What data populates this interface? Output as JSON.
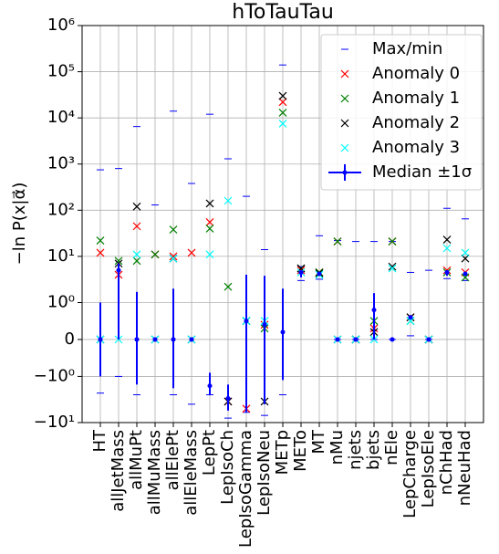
{
  "chart_data": {
    "type": "scatter",
    "title": "hToTauTau",
    "y_label": "−ln P(x|α⃗)",
    "yscale": "symlog",
    "linthresh": 1,
    "grid": true,
    "legend": "upper right",
    "categories": [
      "HT",
      "allJetMass",
      "allMuPt",
      "allMuMass",
      "allElePt",
      "allEleMass",
      "LepPt",
      "LepIsoCh",
      "LepIsoGamma",
      "LepIsoNeu",
      "METp",
      "METo",
      "MT",
      "nMu",
      "njets",
      "bjets",
      "nEle",
      "LepCharge",
      "LepIsoEle",
      "nChHad",
      "nNeuHad"
    ],
    "ylim": [
      -10,
      1000000
    ],
    "yticks": [
      {
        "value": -10,
        "label": "−10¹"
      },
      {
        "value": -1,
        "label": "−10⁰"
      },
      0,
      {
        "value": 1,
        "label": "10⁰"
      },
      {
        "value": 10,
        "label": "10¹"
      },
      {
        "value": 100,
        "label": "10²"
      },
      {
        "value": 1000,
        "label": "10³"
      },
      {
        "value": 10000,
        "label": "10⁴"
      },
      {
        "value": 100000,
        "label": "10⁵"
      },
      {
        "value": 1000000,
        "label": "10⁶"
      }
    ],
    "series": [
      {
        "name": "Max/min",
        "color": "#0000ff",
        "max": [
          750,
          800,
          6500,
          130,
          14000,
          380,
          12000,
          1300,
          200,
          14,
          140000,
          6,
          28,
          22,
          21,
          21,
          21,
          4.5,
          5,
          110,
          65
        ],
        "min": [
          -2.3,
          -1,
          -2.5,
          null,
          -2.5,
          -4,
          -2.5,
          -8,
          -6,
          -7,
          -2.5,
          3,
          3.2,
          0,
          0,
          0,
          0,
          0.1,
          0,
          3.3,
          3
        ]
      },
      {
        "name": "Anomaly 0",
        "color": "#ff0000",
        "values": [
          12,
          4,
          45,
          11,
          10,
          12,
          55,
          -3.5,
          -5,
          0.4,
          22000,
          5,
          4.5,
          21,
          0,
          0.3,
          21,
          0.6,
          0,
          5,
          4.5
        ]
      },
      {
        "name": "Anomaly 1",
        "color": "#008000",
        "values": [
          22,
          8,
          8,
          11,
          38,
          null,
          40,
          2.2,
          0.5,
          0.3,
          13000,
          5.5,
          4.5,
          21,
          0,
          0.5,
          21,
          0.5,
          0,
          4.5,
          3.5
        ]
      },
      {
        "name": "Anomaly 2",
        "color": "#000000",
        "values": [
          0,
          7,
          120,
          0,
          9,
          0,
          140,
          -3.5,
          0.5,
          -3.5,
          30000,
          5.5,
          4.3,
          0,
          0,
          0.2,
          6,
          0.6,
          0,
          23,
          9
        ]
      },
      {
        "name": "Anomaly 3",
        "color": "#00ffff",
        "values": [
          0,
          0,
          11,
          0,
          9,
          0,
          11,
          160,
          0.5,
          0.5,
          7500,
          4.5,
          4,
          0,
          0,
          0,
          5.5,
          0.5,
          0,
          15,
          12
        ]
      },
      {
        "name": "Median ±1σ",
        "color": "#0000ff",
        "values": [
          0,
          5,
          0,
          0,
          0,
          0,
          -1.6,
          -3,
          0.5,
          0.4,
          0.2,
          4.5,
          4.2,
          0,
          0,
          0.8,
          0,
          0.6,
          0,
          4.5,
          4.2
        ],
        "lower": [
          -1,
          0,
          -1.5,
          null,
          -1.8,
          null,
          -2.5,
          -5.5,
          -6,
          -4,
          -1.2,
          3.5,
          null,
          null,
          null,
          0,
          null,
          null,
          null,
          3.8,
          null
        ],
        "upper": [
          1,
          7,
          1.7,
          null,
          2,
          null,
          -0.9,
          -1.5,
          4,
          3.8,
          2,
          5,
          null,
          null,
          null,
          1.6,
          null,
          null,
          null,
          5,
          null
        ]
      }
    ]
  }
}
